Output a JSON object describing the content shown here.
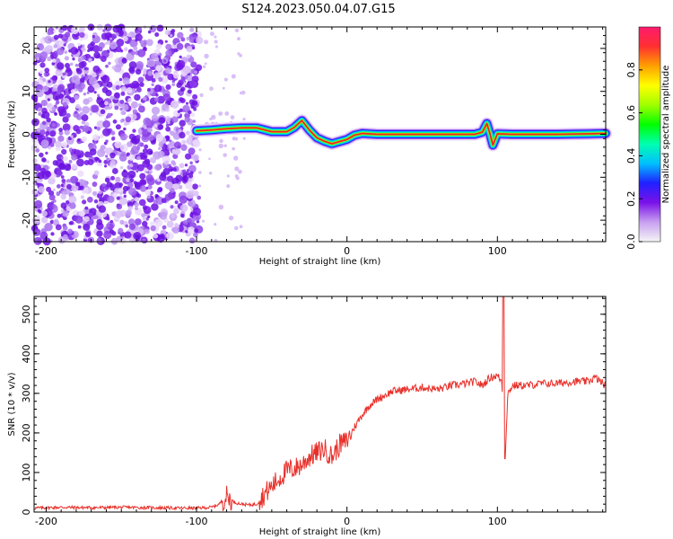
{
  "title": "S124.2023.050.04.07.G15",
  "chart_data": [
    {
      "type": "heatmap",
      "xlabel": "Height of straight line (km)",
      "ylabel": "Frequency (Hz)",
      "xlim": [
        -208,
        172
      ],
      "ylim": [
        -25,
        25
      ],
      "xticks": [
        -200,
        -100,
        0,
        100
      ],
      "yticks": [
        -20,
        -10,
        0,
        10,
        20
      ],
      "colorbar": {
        "label": "Normalized spectral amplitude",
        "ticks": [
          0.0,
          0.2,
          0.4,
          0.6,
          0.8
        ],
        "tick_labels": [
          "0.0",
          "0.2",
          "0.4",
          "0.6",
          "0.8"
        ],
        "range": [
          0,
          1
        ],
        "colormap": [
          "#f5f5f5",
          "#c7a0f0",
          "#7a12e8",
          "#2020ff",
          "#00bfff",
          "#00ffb0",
          "#00ff00",
          "#a0ff00",
          "#ffff00",
          "#ffa000",
          "#ff3030",
          "#ff1a6e"
        ]
      },
      "noise_region": [
        -208,
        -98
      ],
      "signal_track": {
        "x": [
          -100,
          -90,
          -80,
          -70,
          -60,
          -50,
          -40,
          -35,
          -30,
          -25,
          -20,
          -15,
          -10,
          -5,
          0,
          5,
          10,
          20,
          30,
          40,
          50,
          60,
          70,
          80,
          85,
          90,
          93,
          95,
          97,
          100,
          110,
          120,
          140,
          160,
          172
        ],
        "freq": [
          0.8,
          1.0,
          1.3,
          1.5,
          1.5,
          0.6,
          0.6,
          1.6,
          3.2,
          1.0,
          -0.8,
          -1.6,
          -2.2,
          -1.7,
          -1.2,
          -0.2,
          0.2,
          0.0,
          0.0,
          0.0,
          0.0,
          0.0,
          0.0,
          0.0,
          0.0,
          0.5,
          2.5,
          0.2,
          -2.5,
          0.1,
          0.0,
          0.0,
          0.0,
          0.1,
          0.2
        ]
      }
    },
    {
      "type": "line",
      "xlabel": "Height of straight line (km)",
      "ylabel": "SNR (10 * v/v)",
      "xlim": [
        -208,
        172
      ],
      "ylim": [
        0,
        545
      ],
      "xticks": [
        -200,
        -100,
        0,
        100
      ],
      "yticks": [
        0,
        100,
        200,
        300,
        400,
        500
      ],
      "color": "#e8302a",
      "series": [
        {
          "x": [
            -208,
            -190,
            -170,
            -150,
            -130,
            -110,
            -100,
            -90,
            -85,
            -80,
            -75,
            -70,
            -65,
            -60,
            -55,
            -50,
            -45,
            -40,
            -35,
            -30,
            -25,
            -20,
            -15,
            -10,
            -5,
            0,
            5,
            10,
            15,
            20,
            25,
            30,
            40,
            50,
            60,
            70,
            80,
            85,
            90,
            95,
            100,
            103,
            105,
            107,
            110,
            120,
            130,
            140,
            150,
            160,
            165,
            172
          ],
          "y": [
            10,
            12,
            11,
            12,
            11,
            10,
            10,
            12,
            20,
            40,
            25,
            20,
            18,
            20,
            45,
            65,
            85,
            105,
            110,
            120,
            140,
            150,
            160,
            140,
            170,
            180,
            215,
            245,
            270,
            285,
            295,
            305,
            310,
            315,
            310,
            320,
            325,
            330,
            320,
            340,
            345,
            330,
            140,
            300,
            320,
            320,
            325,
            325,
            330,
            330,
            340,
            320
          ]
        }
      ]
    }
  ]
}
